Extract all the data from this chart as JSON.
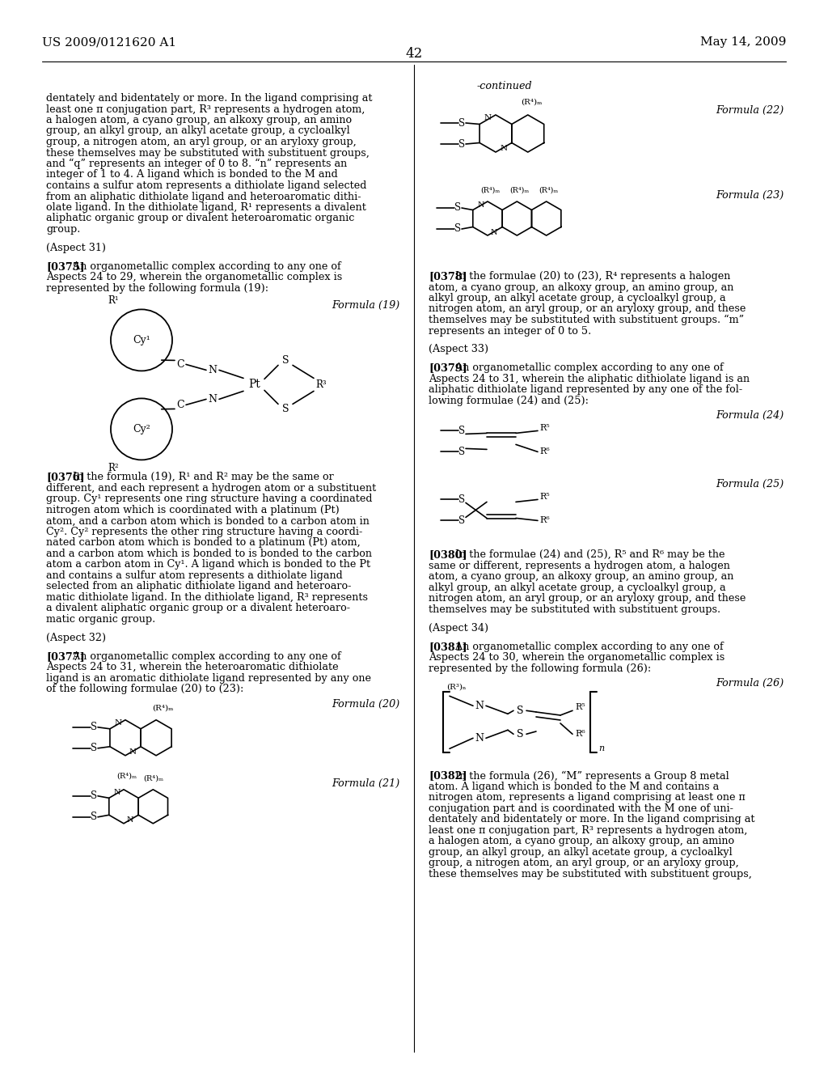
{
  "page_number": "42",
  "patent_number": "US 2009/0121620 A1",
  "patent_date": "May 14, 2009",
  "background_color": "#ffffff",
  "text_color": "#000000",
  "left_col_lines": [
    "dentately and bidentately or more. In the ligand comprising at",
    "least one π conjugation part, R³ represents a hydrogen atom,",
    "a halogen atom, a cyano group, an alkoxy group, an amino",
    "group, an alkyl group, an alkyl acetate group, a cycloalkyl",
    "group, a nitrogen atom, an aryl group, or an aryloxy group,",
    "these themselves may be substituted with substituent groups,",
    "and “q” represents an integer of 0 to 8. “n” represents an",
    "integer of 1 to 4. A ligand which is bonded to the M and",
    "contains a sulfur atom represents a dithiolate ligand selected",
    "from an aliphatic dithiolate ligand and heteroaromatic dithi-",
    "olate ligand. In the dithiolate ligand, R¹ represents a divalent",
    "aliphatic organic group or divalent heteroaromatic organic",
    "group.",
    "",
    "(Aspect 31)",
    "",
    "[0375_bold] An organometallic complex according to any one of",
    "Aspects 24 to 29, wherein the organometallic complex is",
    "represented by the following formula (19):"
  ],
  "left_col_below_struct": [
    "[0376_bold] In the formula (19), R¹ and R² may be the same or",
    "different, and each represent a hydrogen atom or a substituent",
    "group. Cy¹ represents one ring structure having a coordinated",
    "nitrogen atom which is coordinated with a platinum (Pt)",
    "atom, and a carbon atom which is bonded to a carbon atom in",
    "Cy². Cy² represents the other ring structure having a coordi-",
    "nated carbon atom which is bonded to a platinum (Pt) atom,",
    "and a carbon atom which is bonded to is bonded to the carbon",
    "atom a carbon atom in Cy¹. A ligand which is bonded to the Pt",
    "and contains a sulfur atom represents a dithiolate ligand",
    "selected from an aliphatic dithiolate ligand and heteroaro-",
    "matic dithiolate ligand. In the dithiolate ligand, R³ represents",
    "a divalent aliphatic organic group or a divalent heteroaro-",
    "matic organic group.",
    "",
    "(Aspect 32)",
    "",
    "[0377_bold] An organometallic complex according to any one of",
    "Aspects 24 to 31, wherein the heteroaromatic dithiolate",
    "ligand is an aromatic dithiolate ligand represented by any one",
    "of the following formulae (20) to (23):"
  ],
  "right_col_lines_top": [
    "[0378_bold] In the formulae (20) to (23), R⁴ represents a halogen",
    "atom, a cyano group, an alkoxy group, an amino group, an",
    "alkyl group, an alkyl acetate group, a cycloalkyl group, a",
    "nitrogen atom, an aryl group, or an aryloxy group, and these",
    "themselves may be substituted with substituent groups. “m”",
    "represents an integer of 0 to 5.",
    "",
    "(Aspect 33)",
    "",
    "[0379_bold] An organometallic complex according to any one of",
    "Aspects 24 to 31, wherein the aliphatic dithiolate ligand is an",
    "aliphatic dithiolate ligand represented by any one of the fol-",
    "lowing formulae (24) and (25):"
  ],
  "right_col_lines_bottom": [
    "[0380_bold] In the formulae (24) and (25), R⁵ and R⁶ may be the",
    "same or different, represents a hydrogen atom, a halogen",
    "atom, a cyano group, an alkoxy group, an amino group, an",
    "alkyl group, an alkyl acetate group, a cycloalkyl group, a",
    "nitrogen atom, an aryl group, or an aryloxy group, and these",
    "themselves may be substituted with substituent groups.",
    "",
    "(Aspect 34)",
    "",
    "[0381_bold] An organometallic complex according to any one of",
    "Aspects 24 to 30, wherein the organometallic complex is",
    "represented by the following formula (26):"
  ],
  "right_col_lines_last": [
    "[0382_bold] In the formula (26), “M” represents a Group 8 metal",
    "atom. A ligand which is bonded to the M and contains a",
    "nitrogen atom, represents a ligand comprising at least one π",
    "conjugation part and is coordinated with the M one of uni-",
    "dentately and bidentately or more. In the ligand comprising at",
    "least one π conjugation part, R³ represents a hydrogen atom,",
    "a halogen atom, a cyano group, an alkoxy group, an amino",
    "group, an alkyl group, an alkyl acetate group, a cycloalkyl",
    "group, a nitrogen atom, an aryl group, or an aryloxy group,",
    "these themselves may be substituted with substituent groups,"
  ]
}
